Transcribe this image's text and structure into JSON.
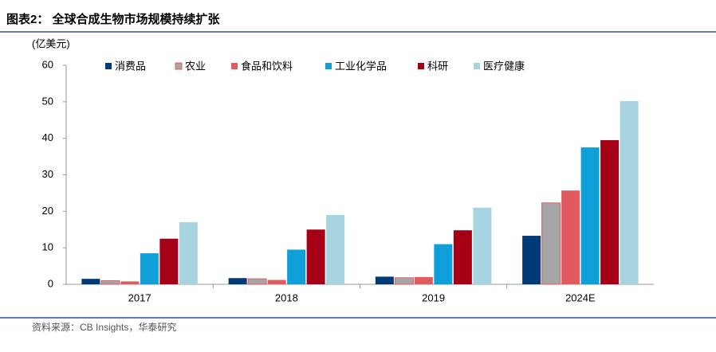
{
  "chart_data": {
    "type": "bar",
    "title": "图表2：  全球合成生物市场规模持续扩张",
    "y_label": "(亿美元)",
    "source": "资料来源：CB Insights，华泰研究",
    "categories": [
      "2017",
      "2018",
      "2019",
      "2024E"
    ],
    "series": [
      {
        "name": "消费品",
        "color": "#003a78",
        "values": [
          1.5,
          1.7,
          2.1,
          13.3
        ]
      },
      {
        "name": "农业",
        "color": "#a6a6a6",
        "values": [
          1.0,
          1.5,
          1.8,
          22.3
        ]
      },
      {
        "name": "食品和饮料",
        "color": "#e05a5f",
        "values": [
          0.8,
          1.2,
          2.0,
          25.7
        ]
      },
      {
        "name": "工业化学品",
        "color": "#0fa0d9",
        "values": [
          8.5,
          9.5,
          11.0,
          37.5
        ]
      },
      {
        "name": "科研",
        "color": "#a50016",
        "values": [
          12.5,
          15.0,
          14.8,
          39.5
        ]
      },
      {
        "name": "医疗健康",
        "color": "#a8d3e0",
        "values": [
          17.0,
          19.0,
          21.0,
          50.2
        ]
      }
    ],
    "ylim": [
      0,
      60
    ],
    "yticks": [
      0,
      10,
      20,
      30,
      40,
      50,
      60
    ],
    "grid": false
  }
}
